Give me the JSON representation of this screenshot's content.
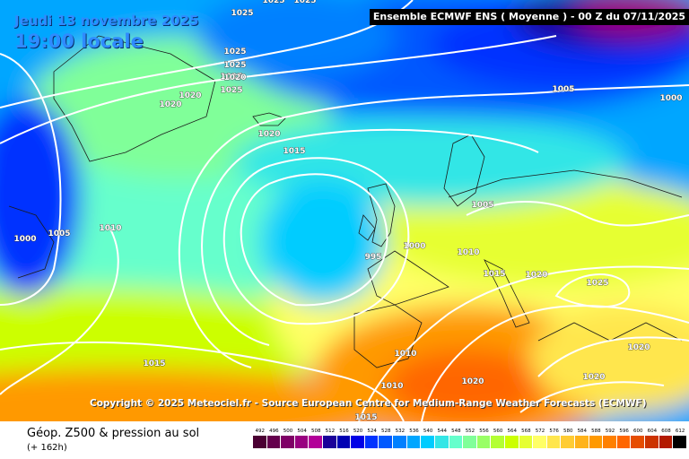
{
  "header": {
    "date": "Jeudi 13 novembre 2025",
    "local_time": "19:00 locale",
    "run_info": "Ensemble ECMWF ENS  ( Moyenne )  -  00 Z du 07/11/2025"
  },
  "copyright": "Copyright © 2025 Meteociel.fr - Source European Centre for Medium-Range Weather Forecasts (ECMWF)",
  "isobar_labels": [
    "1025",
    "1025",
    "1025",
    "1025",
    "1025",
    "1025",
    "1020",
    "1025",
    "1020",
    "1020",
    "1015",
    "1005",
    "1000",
    "1010",
    "1005",
    "1000",
    "995",
    "1000",
    "1010",
    "1005",
    "1015",
    "1020",
    "1025",
    "1015",
    "1010",
    "1010",
    "1020",
    "1020",
    "1020",
    "1015",
    "1020"
  ],
  "footer": {
    "product_title": "Géop. Z500 & pression au sol",
    "lead_time": "(+ 162h)"
  },
  "legend": {
    "values": [
      "492",
      "496",
      "500",
      "504",
      "508",
      "512",
      "516",
      "520",
      "524",
      "528",
      "532",
      "536",
      "540",
      "544",
      "548",
      "552",
      "556",
      "560",
      "564",
      "568",
      "572",
      "576",
      "580",
      "584",
      "588",
      "592",
      "596",
      "600",
      "604",
      "608",
      "612"
    ],
    "colors": [
      "#4b0033",
      "#65004d",
      "#7f0066",
      "#990080",
      "#b30099",
      "#1a0099",
      "#0000b3",
      "#0000e6",
      "#0033ff",
      "#0059ff",
      "#0080ff",
      "#00a6ff",
      "#00ccff",
      "#33e6e6",
      "#66ffcc",
      "#80ff99",
      "#99ff66",
      "#b3ff33",
      "#ccff00",
      "#e6ff33",
      "#ffff66",
      "#ffe64d",
      "#ffcc33",
      "#ffb31a",
      "#ff9900",
      "#ff8000",
      "#ff6600",
      "#e64d00",
      "#cc3300",
      "#b31a00",
      "#000000"
    ]
  },
  "colors": {
    "accent": "#2f8bff",
    "banner": "#000000"
  }
}
